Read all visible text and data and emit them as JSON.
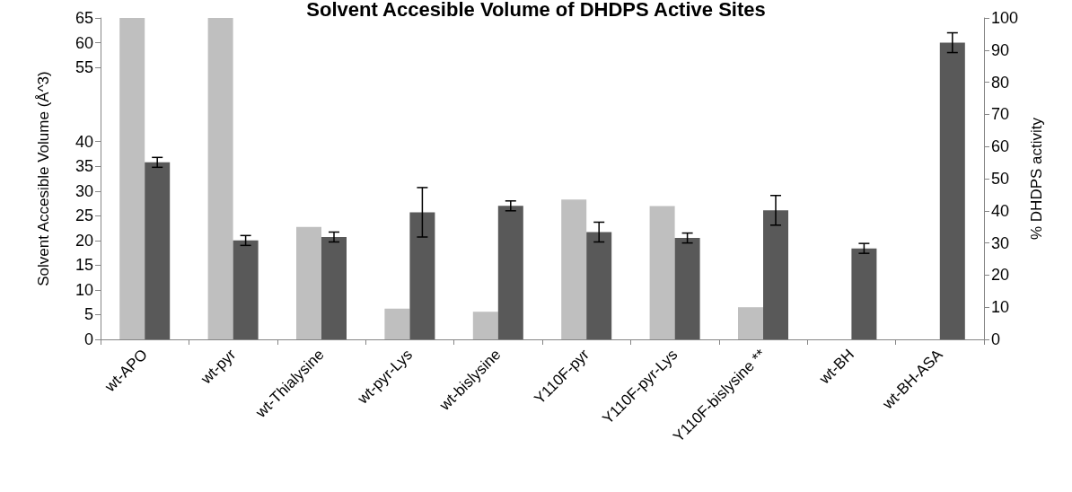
{
  "chart_data": {
    "type": "bar",
    "title": "Solvent Accesible Volume of DHDPS Active Sites",
    "ylabel": "Solvent Accesible Volume (Å^3)",
    "y2label": "% DHDPS activity",
    "categories": [
      "wt-APO",
      "wt-pyr",
      "wt-Thialysine",
      "wt-pyr-Lys",
      "wt-bislysine",
      "Y110F-pyr",
      "Y110F-pyr-Lys",
      "Y110F-bislysine **",
      "wt-BH",
      "wt-BH-ASA"
    ],
    "series": [
      {
        "color": "#bfbfbf",
        "axis": "y2",
        "values": [
          100,
          100,
          35,
          9.6,
          8.6,
          43.5,
          41.5,
          10,
          null,
          null
        ]
      },
      {
        "color": "#595959",
        "values": [
          35.8,
          20.0,
          20.7,
          25.7,
          27.0,
          21.7,
          20.5,
          26.1,
          18.4,
          60
        ],
        "errors": [
          1,
          1,
          1,
          5,
          1,
          2,
          1,
          3,
          1,
          2
        ]
      }
    ],
    "ylim": [
      0,
      65
    ],
    "yticks": [
      0,
      5,
      10,
      15,
      20,
      25,
      30,
      35,
      40,
      55,
      60,
      65
    ],
    "y2lim": [
      0,
      100
    ],
    "y2ticks": [
      0,
      10,
      20,
      30,
      40,
      50,
      60,
      70,
      80,
      90,
      100
    ],
    "grid": false
  }
}
